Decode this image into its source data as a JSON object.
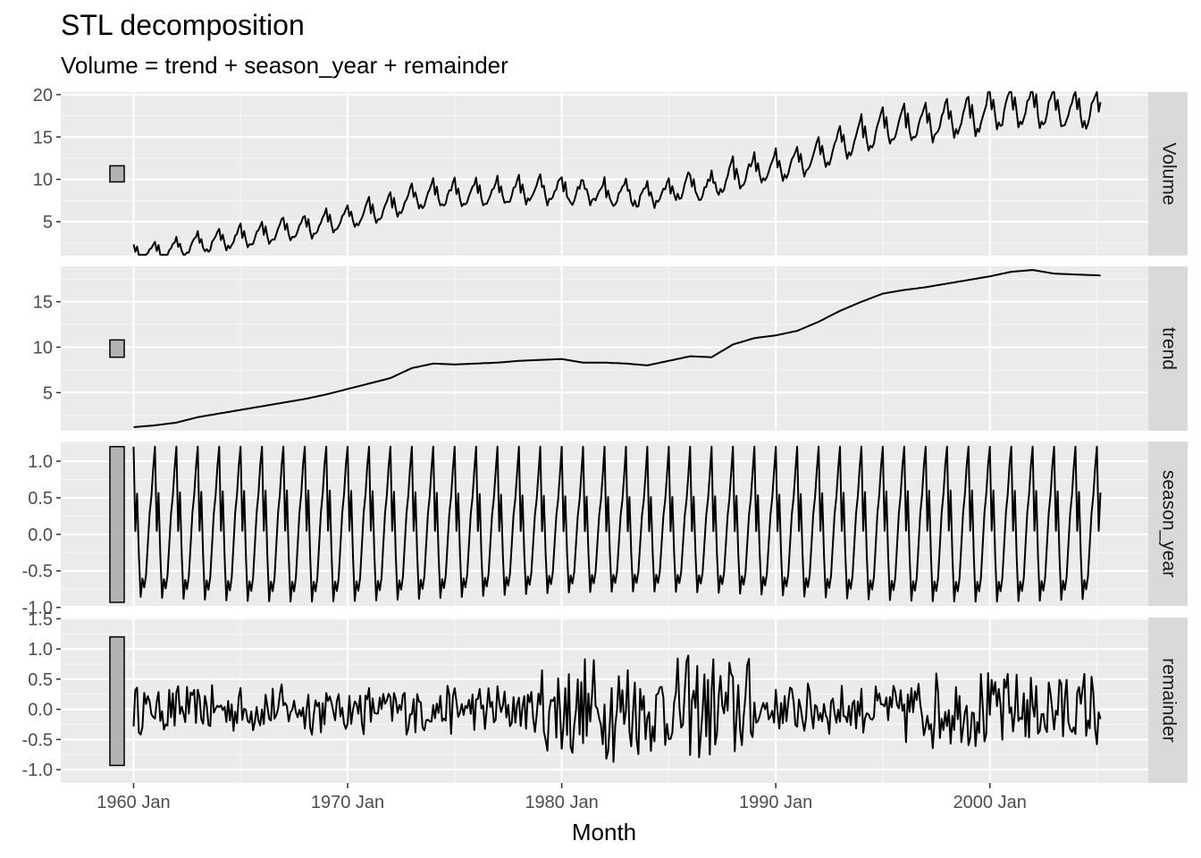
{
  "chart_data": {
    "type": "line",
    "title": "STL decomposition",
    "subtitle": "Volume = trend + season_year + remainder",
    "xlabel": "Month",
    "x_range": [
      "1960 Jan",
      "2005 Mar"
    ],
    "x_ticks": [
      "1960 Jan",
      "1970 Jan",
      "1980 Jan",
      "1990 Jan",
      "2000 Jan"
    ],
    "grid": true,
    "panels": [
      {
        "name": "Volume",
        "ylim": [
          1.0,
          20.3
        ],
        "y_ticks": [
          "5",
          "10",
          "15",
          "20"
        ],
        "range_bar": [
          9.7,
          11.6
        ],
        "anchors": [
          [
            1960,
            1.5
          ],
          [
            1961,
            1.3
          ],
          [
            1962,
            1.8
          ],
          [
            1963,
            2.3
          ],
          [
            1964,
            2.7
          ],
          [
            1965,
            3.2
          ],
          [
            1966,
            3.6
          ],
          [
            1967,
            4.0
          ],
          [
            1968,
            4.5
          ],
          [
            1969,
            5.0
          ],
          [
            1970,
            5.7
          ],
          [
            1971,
            6.2
          ],
          [
            1972,
            7.0
          ],
          [
            1973,
            8.0
          ],
          [
            1974,
            8.2
          ],
          [
            1975,
            8.1
          ],
          [
            1976,
            8.2
          ],
          [
            1977,
            8.3
          ],
          [
            1978,
            8.4
          ],
          [
            1979,
            8.5
          ],
          [
            1980,
            8.7
          ],
          [
            1981,
            8.3
          ],
          [
            1982,
            8.3
          ],
          [
            1983,
            8.2
          ],
          [
            1984,
            8.0
          ],
          [
            1985,
            8.5
          ],
          [
            1986,
            8.9
          ],
          [
            1987,
            8.9
          ],
          [
            1988,
            10.5
          ],
          [
            1989,
            11.0
          ],
          [
            1990,
            11.3
          ],
          [
            1991,
            11.8
          ],
          [
            1992,
            12.8
          ],
          [
            1993,
            14.0
          ],
          [
            1994,
            15.0
          ],
          [
            1995,
            16.0
          ],
          [
            1996,
            16.4
          ],
          [
            1997,
            16.8
          ],
          [
            1998,
            17.0
          ],
          [
            1999,
            17.4
          ],
          [
            2000,
            17.8
          ],
          [
            2001,
            18.3
          ],
          [
            2002,
            18.5
          ],
          [
            2003,
            18.1
          ],
          [
            2004,
            18.0
          ],
          [
            2005.17,
            17.8
          ]
        ]
      },
      {
        "name": "trend",
        "ylim": [
          0.8,
          18.9
        ],
        "y_ticks": [
          "5",
          "10",
          "15"
        ],
        "range_bar": [
          8.9,
          10.8
        ],
        "anchors": [
          [
            1960,
            1.2
          ],
          [
            1961,
            1.4
          ],
          [
            1962,
            1.7
          ],
          [
            1963,
            2.3
          ],
          [
            1964,
            2.7
          ],
          [
            1965,
            3.1
          ],
          [
            1966,
            3.5
          ],
          [
            1967,
            3.9
          ],
          [
            1968,
            4.3
          ],
          [
            1969,
            4.8
          ],
          [
            1970,
            5.4
          ],
          [
            1971,
            6.0
          ],
          [
            1972,
            6.6
          ],
          [
            1973,
            7.7
          ],
          [
            1974,
            8.2
          ],
          [
            1975,
            8.1
          ],
          [
            1976,
            8.2
          ],
          [
            1977,
            8.3
          ],
          [
            1978,
            8.5
          ],
          [
            1979,
            8.6
          ],
          [
            1980,
            8.7
          ],
          [
            1981,
            8.3
          ],
          [
            1982,
            8.3
          ],
          [
            1983,
            8.2
          ],
          [
            1984,
            8.0
          ],
          [
            1985,
            8.5
          ],
          [
            1986,
            9.0
          ],
          [
            1987,
            8.9
          ],
          [
            1988,
            10.3
          ],
          [
            1989,
            11.0
          ],
          [
            1990,
            11.3
          ],
          [
            1991,
            11.8
          ],
          [
            1992,
            12.8
          ],
          [
            1993,
            14.0
          ],
          [
            1994,
            15.0
          ],
          [
            1995,
            15.9
          ],
          [
            1996,
            16.3
          ],
          [
            1997,
            16.6
          ],
          [
            1998,
            17.0
          ],
          [
            1999,
            17.4
          ],
          [
            2000,
            17.8
          ],
          [
            2001,
            18.3
          ],
          [
            2002,
            18.5
          ],
          [
            2003,
            18.1
          ],
          [
            2004,
            18.0
          ],
          [
            2005.17,
            17.9
          ]
        ]
      },
      {
        "name": "season_year",
        "ylim": [
          -0.98,
          1.27
        ],
        "y_ticks": [
          "-1.0",
          "-0.5",
          "0.0",
          "0.5",
          "1.0"
        ],
        "range_bar": [
          -0.93,
          1.2
        ],
        "seasonal_pattern": [
          1.2,
          0.05,
          0.6,
          -0.3,
          -0.92,
          -0.65,
          -0.78,
          -0.6,
          -0.15,
          0.3,
          0.55,
          0.95
        ]
      },
      {
        "name": "remainder",
        "ylim": [
          -1.22,
          1.52
        ],
        "y_ticks": [
          "-1.0",
          "-0.5",
          "0.0",
          "0.5",
          "1.0",
          "1.5"
        ],
        "range_bar": [
          -0.93,
          1.2
        ]
      }
    ]
  }
}
